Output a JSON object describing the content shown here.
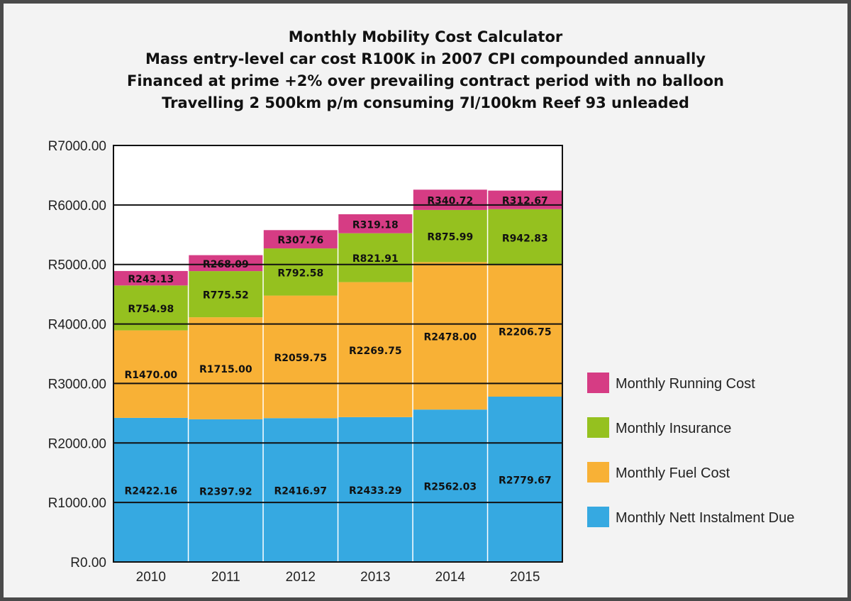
{
  "chart_data": {
    "type": "bar",
    "stacked": true,
    "title_lines": [
      "Monthly Mobility Cost Calculator",
      "Mass entry-level car cost R100K in 2007 CPI compounded annually",
      "Financed at prime +2% over prevailing contract period with no balloon",
      "Travelling 2 500km p/m consuming 7l/100km Reef 93 unleaded"
    ],
    "categories": [
      "2010",
      "2011",
      "2012",
      "2013",
      "2014",
      "2015"
    ],
    "ylim": [
      0,
      7000
    ],
    "yticks": [
      0,
      1000,
      2000,
      3000,
      4000,
      5000,
      6000,
      7000
    ],
    "ytick_labels": [
      "R0.00",
      "R1000.00",
      "R2000.00",
      "R3000.00",
      "R4000.00",
      "R5000.00",
      "R6000.00",
      "R7000.00"
    ],
    "grid": true,
    "legend_position": "right",
    "series": [
      {
        "name": "Monthly Nett Instalment Due",
        "color": "#36a9e1",
        "values": [
          2422.16,
          2397.92,
          2416.97,
          2433.29,
          2562.03,
          2779.67
        ],
        "labels": [
          "R2422.16",
          "R2397.92",
          "R2416.97",
          "R2433.29",
          "R2562.03",
          "R2779.67"
        ]
      },
      {
        "name": "Monthly Fuel Cost",
        "color": "#f8b136",
        "values": [
          1470.0,
          1715.0,
          2059.75,
          2269.75,
          2478.0,
          2206.75
        ],
        "labels": [
          "R1470.00",
          "R1715.00",
          "R2059.75",
          "R2269.75",
          "R2478.00",
          "R2206.75"
        ]
      },
      {
        "name": "Monthly Insurance",
        "color": "#95c11f",
        "values": [
          754.98,
          775.52,
          792.58,
          821.91,
          875.99,
          942.83
        ],
        "labels": [
          "R754.98",
          "R775.52",
          "R792.58",
          "R821.91",
          "R875.99",
          "R942.83"
        ]
      },
      {
        "name": "Monthly Running Cost",
        "color": "#d63c84",
        "values": [
          243.13,
          268.09,
          307.76,
          319.18,
          340.72,
          312.67
        ],
        "labels": [
          "R243.13",
          "R268.09",
          "R307.76",
          "R319.18",
          "R340.72",
          "R312.67"
        ]
      }
    ],
    "legend_order": [
      "Monthly Running Cost",
      "Monthly Insurance",
      "Monthly Fuel Cost",
      "Monthly Nett Instalment Due"
    ]
  }
}
